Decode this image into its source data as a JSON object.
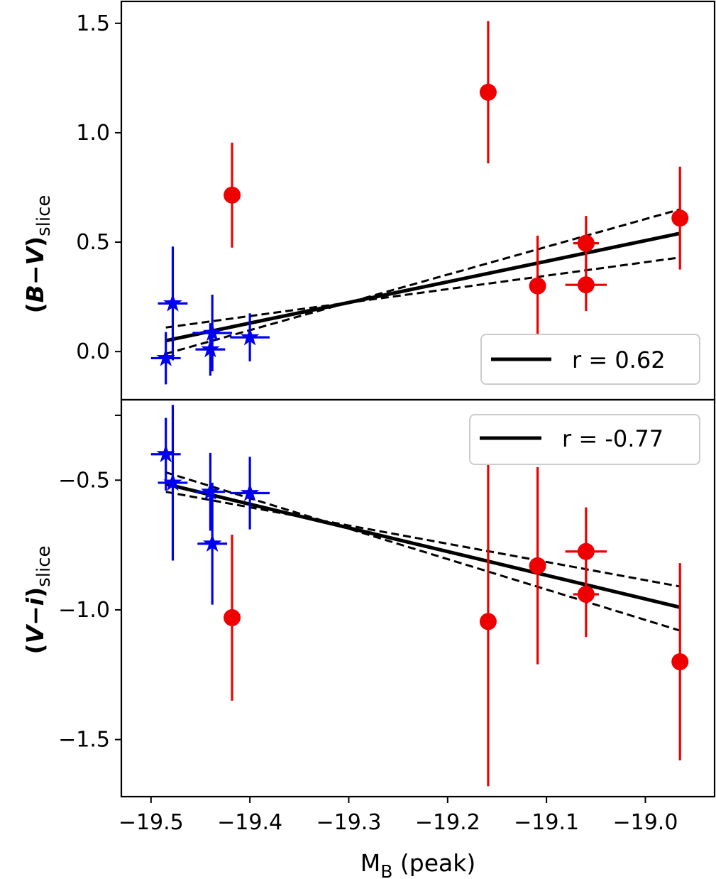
{
  "chart_data": [
    {
      "type": "scatter",
      "ylabel": {
        "open": "(",
        "var1": "B",
        "minus": "−",
        "var2": "V",
        "close": ")",
        "sub": "slice"
      },
      "xlim": [
        -19.53,
        -18.93
      ],
      "ylim": [
        -0.22,
        1.6
      ],
      "yticks": [
        {
          "value": 1.5,
          "label": "1.5"
        },
        {
          "value": 1.0,
          "label": "1.0"
        },
        {
          "value": 0.5,
          "label": "0.5"
        },
        {
          "value": 0.0,
          "label": "0.0"
        }
      ],
      "legend": {
        "label": "r = 0.62",
        "location": "lower-right"
      },
      "series": [
        {
          "name": "stars",
          "marker": "star",
          "color": "#0000ee",
          "points": [
            {
              "x": -19.478,
              "y": 0.22,
              "xerr": 0.015,
              "yerr": 0.26
            },
            {
              "x": -19.485,
              "y": -0.03,
              "xerr": 0.015,
              "yerr": 0.12
            },
            {
              "x": -19.438,
              "y": 0.085,
              "xerr": 0.02,
              "yerr": 0.175
            },
            {
              "x": -19.44,
              "y": 0.01,
              "xerr": 0.015,
              "yerr": 0.12
            },
            {
              "x": -19.4,
              "y": 0.065,
              "xerr": 0.02,
              "yerr": 0.11
            }
          ]
        },
        {
          "name": "circles",
          "marker": "circle",
          "color": "#ee0000",
          "points": [
            {
              "x": -19.418,
              "y": 0.715,
              "xerr": 0.008,
              "yerr": 0.24
            },
            {
              "x": -19.159,
              "y": 1.185,
              "xerr": 0.008,
              "yerr": 0.325
            },
            {
              "x": -19.109,
              "y": 0.3,
              "xerr": 0.0,
              "yerr": 0.23
            },
            {
              "x": -19.06,
              "y": 0.495,
              "xerr": 0.013,
              "yerr": 0.125
            },
            {
              "x": -19.06,
              "y": 0.305,
              "xerr": 0.021,
              "yerr": 0.12
            },
            {
              "x": -18.965,
              "y": 0.61,
              "xerr": 0.008,
              "yerr": 0.235
            }
          ]
        }
      ],
      "fit": {
        "x": [
          -19.485,
          -18.965
        ],
        "y": [
          0.05,
          0.54
        ]
      },
      "fit_bounds": [
        {
          "x": [
            -19.485,
            -18.965
          ],
          "y": [
            0.11,
            0.43
          ]
        },
        {
          "x": [
            -19.485,
            -18.965
          ],
          "y": [
            -0.01,
            0.65
          ]
        }
      ]
    },
    {
      "type": "scatter",
      "xlabel": {
        "main": "M",
        "sub": "B",
        "suffix": " (peak)"
      },
      "ylabel": {
        "open": "(",
        "var1": "V",
        "minus": "−",
        "var2": "i",
        "close": ")",
        "sub": "slice"
      },
      "xlim": [
        -19.53,
        -18.93
      ],
      "ylim": [
        -1.72,
        -0.19
      ],
      "xticks": [
        {
          "value": -19.5,
          "label": "−19.5"
        },
        {
          "value": -19.4,
          "label": "−19.4"
        },
        {
          "value": -19.3,
          "label": "−19.3"
        },
        {
          "value": -19.2,
          "label": "−19.2"
        },
        {
          "value": -19.1,
          "label": "−19.1"
        },
        {
          "value": -19.0,
          "label": "−19.0"
        }
      ],
      "yticks": [
        {
          "value": -0.5,
          "label": "−0.5"
        },
        {
          "value": -1.0,
          "label": "−1.0"
        },
        {
          "value": -1.5,
          "label": "−1.5"
        }
      ],
      "extra_ticks": [
        -0.25
      ],
      "legend": {
        "label": "r = -0.77",
        "location": "upper-right"
      },
      "series": [
        {
          "name": "stars",
          "marker": "star",
          "color": "#0000ee",
          "points": [
            {
              "x": -19.485,
              "y": -0.4,
              "xerr": 0.015,
              "yerr": 0.14
            },
            {
              "x": -19.478,
              "y": -0.51,
              "xerr": 0.015,
              "yerr": 0.3
            },
            {
              "x": -19.44,
              "y": -0.545,
              "xerr": 0.015,
              "yerr": 0.15
            },
            {
              "x": -19.438,
              "y": -0.745,
              "xerr": 0.015,
              "yerr": 0.235
            },
            {
              "x": -19.4,
              "y": -0.55,
              "xerr": 0.02,
              "yerr": 0.14
            }
          ]
        },
        {
          "name": "circles",
          "marker": "circle",
          "color": "#ee0000",
          "points": [
            {
              "x": -19.418,
              "y": -1.03,
              "xerr": 0.008,
              "yerr": 0.32
            },
            {
              "x": -19.159,
              "y": -1.045,
              "xerr": 0.008,
              "yerr": 0.635
            },
            {
              "x": -19.109,
              "y": -0.83,
              "xerr": 0.0,
              "yerr": 0.38
            },
            {
              "x": -19.06,
              "y": -0.775,
              "xerr": 0.021,
              "yerr": 0.17
            },
            {
              "x": -19.06,
              "y": -0.94,
              "xerr": 0.013,
              "yerr": 0.165
            },
            {
              "x": -18.965,
              "y": -1.2,
              "xerr": 0.008,
              "yerr": 0.38
            }
          ]
        }
      ],
      "fit": {
        "x": [
          -19.485,
          -18.965
        ],
        "y": [
          -0.515,
          -0.99
        ]
      },
      "fit_bounds": [
        {
          "x": [
            -19.485,
            -18.965
          ],
          "y": [
            -0.545,
            -0.91
          ]
        },
        {
          "x": [
            -19.485,
            -18.965
          ],
          "y": [
            -0.47,
            -1.08
          ]
        }
      ]
    }
  ]
}
